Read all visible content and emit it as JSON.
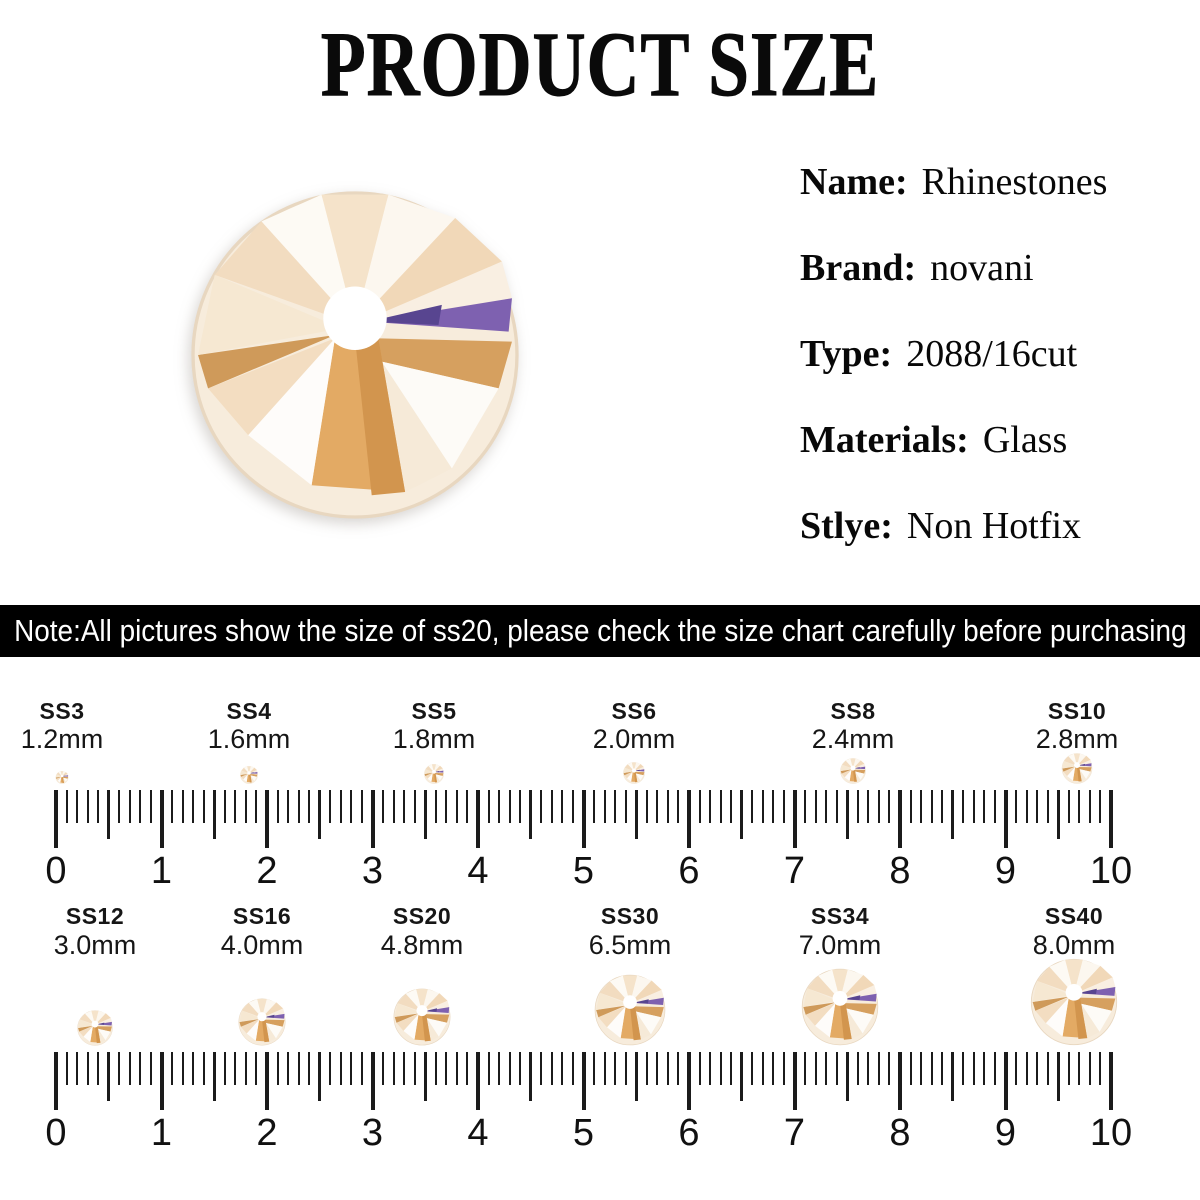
{
  "title": "PRODUCT SIZE",
  "hero_image": "champagne-rhinestone-gem",
  "product": {
    "specs": [
      {
        "label": "Name:",
        "value": "Rhinestones"
      },
      {
        "label": "Brand:",
        "value": "novani"
      },
      {
        "label": "Type:",
        "value": "2088/16cut"
      },
      {
        "label": "Materials:",
        "value": "Glass"
      },
      {
        "label": "Stlye:",
        "value": "Non Hotfix"
      }
    ]
  },
  "note": "Note:All pictures show the size of ss20, please check the size chart carefully before purchasing",
  "size_chart": {
    "rows": [
      {
        "items": [
          {
            "code": "SS3",
            "mm": "1.2mm"
          },
          {
            "code": "SS4",
            "mm": "1.6mm"
          },
          {
            "code": "SS5",
            "mm": "1.8mm"
          },
          {
            "code": "SS6",
            "mm": "2.0mm"
          },
          {
            "code": "SS8",
            "mm": "2.4mm"
          },
          {
            "code": "SS10",
            "mm": "2.8mm"
          }
        ]
      },
      {
        "items": [
          {
            "code": "SS12",
            "mm": "3.0mm"
          },
          {
            "code": "SS16",
            "mm": "4.0mm"
          },
          {
            "code": "SS20",
            "mm": "4.8mm"
          },
          {
            "code": "SS30",
            "mm": "6.5mm"
          },
          {
            "code": "SS34",
            "mm": "7.0mm"
          },
          {
            "code": "SS40",
            "mm": "8.0mm"
          }
        ]
      }
    ],
    "ruler_numbers": [
      "0",
      "1",
      "2",
      "3",
      "4",
      "5",
      "6",
      "7",
      "8",
      "9",
      "10"
    ],
    "ruler_unit": "cm"
  },
  "colors": {
    "background": "#ffffff",
    "text": "#0d0d0d",
    "banner_bg": "#000000",
    "banner_text": "#ffffff",
    "ruler_tick": "#1b1b1b",
    "gem_cream": "#f7ecdc",
    "gem_peach": "#f2dcc0",
    "gem_gold": "#e3aa64",
    "gem_amber": "#d6a05f",
    "gem_purple": "#7e61b0",
    "gem_white": "#fdfaf4"
  }
}
